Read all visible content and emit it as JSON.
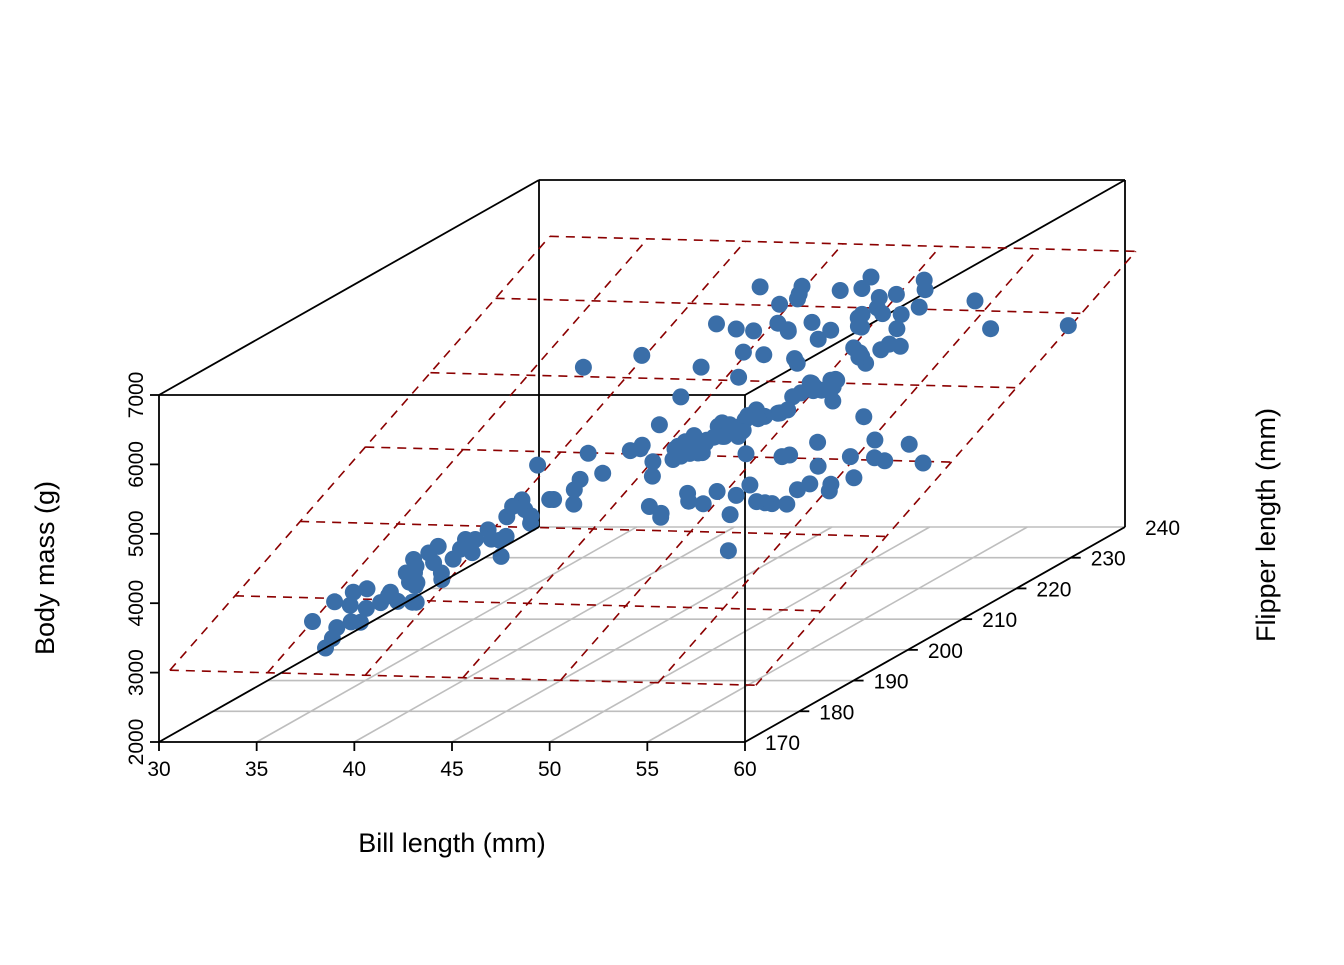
{
  "chart_data": {
    "type": "scatter",
    "projection": "scatterplot3d",
    "title": "",
    "xlabel": "Bill length (mm)",
    "ylabel": "Flipper length (mm)",
    "zlabel": "Body mass (g)",
    "xlim": [
      30,
      60
    ],
    "ylim": [
      170,
      240
    ],
    "zlim": [
      2000,
      7000
    ],
    "x_ticks": [
      "30",
      "35",
      "40",
      "45",
      "50",
      "55",
      "60"
    ],
    "y_ticks": [
      "170",
      "180",
      "190",
      "200",
      "210",
      "220",
      "230",
      "240"
    ],
    "z_ticks": [
      "2000",
      "3000",
      "4000",
      "5000",
      "6000",
      "7000"
    ],
    "grid": true,
    "legend": "none",
    "regression_plane": {
      "shown": true,
      "style": "dashed",
      "color": "#8B0000",
      "x_lines": [
        30,
        35,
        40,
        45,
        50,
        55,
        60
      ],
      "y_lines": [
        172,
        184,
        196,
        208,
        220,
        232,
        242
      ]
    },
    "point_color": "#3A6EA8",
    "grid_color": "#BEBEBE",
    "series": [
      {
        "x": [
          35.1,
          37.8,
          38.6,
          36.9,
          39.5,
          40.2,
          41.1,
          38.1,
          38.8,
          39.2,
          36.5,
          37.6,
          38.2,
          37.3,
          36.7,
          37.9,
          37.2,
          39.9,
          40.3,
          36.1,
          38.0,
          35.9,
          34.8,
          36.3,
          41.8,
          42.1,
          38.5,
          39.0,
          37.4,
          36.6,
          40.6,
          39.8,
          41.4,
          37.0,
          36.2,
          38.9,
          42.5,
          43.2,
          44.1,
          39.6,
          40.9,
          35.5,
          37.7,
          38.4,
          40.8,
          41.5,
          42.7,
          43.5,
          37.1,
          39.3,
          45.2,
          44.7,
          46.3,
          42.8,
          41.6,
          45.0,
          43.9,
          46.0,
          44.4,
          40.5,
          46.5,
          47.8,
          49.1,
          48.2,
          50.3,
          46.9,
          47.5,
          50.8,
          49.4,
          48.7,
          51.3,
          45.8,
          47.2,
          49.8,
          50.5,
          52.0,
          46.7,
          45.5,
          48.5,
          46.1,
          47.0,
          45.3,
          49.0,
          50.0,
          51.8,
          46.4,
          45.9,
          43.8,
          46.6,
          50.2,
          49.6,
          52.5,
          47.4,
          50.9,
          48.9,
          46.2,
          51.1,
          45.6,
          49.3,
          53.5,
          42.9,
          47.7,
          46.8,
          48.1,
          49.5,
          50.1,
          50.6,
          45.1,
          46.5,
          47.3,
          48.4,
          49.2,
          50.4,
          51.5,
          52.2,
          48.8,
          45.7,
          47.6,
          46.9,
          50.7,
          49.9,
          48.6,
          51.9,
          49.7,
          45.4,
          48.3,
          53.4,
          52.7,
          50.5,
          51.4,
          46.0,
          48.0,
          44.9,
          49.8,
          50.0,
          55.9,
          47.9,
          48.6,
          59.6,
          49.2,
          46.3,
          50.8,
          48.5,
          51.2,
          47.1,
          52.1,
          55.1,
          45.2,
          49.6,
          50.2,
          46.8,
          49.4,
          50.1,
          47.6,
          50.7,
          53.1,
          49.5,
          46.1,
          52.8,
          48.2,
          51.6,
          45.1,
          47.2,
          50.4,
          46.4,
          49.1,
          48.7,
          47.4,
          52.5,
          50.8,
          51.1,
          43.3,
          45.5,
          46.6,
          54.2,
          55.8,
          51.3,
          50.6,
          49.8,
          48.1,
          54.3,
          42.0,
          43.6,
          44.5,
          52.2,
          53.8,
          58.0
        ],
        "y": [
          184,
          189,
          183,
          186,
          190,
          191,
          194,
          187,
          185,
          189,
          182,
          190,
          188,
          186,
          183,
          193,
          191,
          195,
          197,
          180,
          188,
          184,
          181,
          178,
          196,
          195,
          190,
          185,
          186,
          179,
          197,
          193,
          192,
          183,
          186,
          190,
          197,
          199,
          201,
          191,
          192,
          186,
          192,
          187,
          198,
          196,
          197,
          199,
          190,
          193,
          210,
          208,
          212,
          203,
          198,
          207,
          209,
          211,
          205,
          195,
          214,
          216,
          218,
          213,
          219,
          213,
          215,
          220,
          216,
          210,
          218,
          214,
          215,
          217,
          220,
          221,
          210,
          212,
          215,
          209,
          213,
          210,
          212,
          218,
          221,
          214,
          215,
          209,
          214,
          218,
          220,
          222,
          215,
          219,
          216,
          211,
          223,
          210,
          215,
          222,
          200,
          213,
          217,
          213,
          216,
          219,
          220,
          206,
          208,
          208,
          209,
          211,
          218,
          220,
          222,
          214,
          206,
          213,
          212,
          219,
          216,
          216,
          223,
          219,
          207,
          213,
          224,
          222,
          220,
          221,
          210,
          220,
          212,
          219,
          226,
          230,
          217,
          219,
          231,
          218,
          219,
          224,
          221,
          227,
          218,
          225,
          230,
          218,
          229,
          230,
          228,
          229,
          230,
          221,
          225,
          228,
          231,
          230,
          228,
          230,
          229,
          222,
          224,
          226,
          225,
          225,
          223,
          225,
          230,
          231,
          230,
          222,
          221,
          221,
          212,
          207,
          200,
          201,
          197,
          201,
          204,
          205,
          210,
          210,
          195,
          200,
          210
        ],
        "z": [
          3400,
          3600,
          3450,
          3300,
          3750,
          3800,
          3900,
          3550,
          3350,
          3500,
          3200,
          3650,
          3500,
          3400,
          3150,
          3800,
          3700,
          3950,
          4050,
          3050,
          3600,
          3350,
          3250,
          3000,
          4000,
          4150,
          3700,
          3350,
          3450,
          3250,
          4200,
          3900,
          3700,
          3350,
          3500,
          3550,
          4300,
          4350,
          4500,
          3850,
          3950,
          3450,
          3750,
          3500,
          4250,
          4200,
          4300,
          4500,
          3550,
          3900,
          4300,
          4150,
          4450,
          4700,
          4750,
          4400,
          4550,
          4600,
          4650,
          3800,
          4600,
          4750,
          4850,
          4800,
          4900,
          4500,
          4650,
          5000,
          4750,
          4700,
          5100,
          4400,
          4550,
          4950,
          5000,
          5200,
          4400,
          4300,
          4700,
          4600,
          4500,
          4450,
          4800,
          5050,
          5300,
          4600,
          4400,
          4500,
          4650,
          5000,
          4850,
          5350,
          4500,
          4950,
          4700,
          4350,
          5200,
          4350,
          4750,
          5400,
          4100,
          4500,
          4400,
          4250,
          4100,
          4150,
          4700,
          3800,
          3900,
          3750,
          3550,
          3650,
          3850,
          3900,
          4050,
          3500,
          3700,
          3650,
          3750,
          3450,
          3600,
          3400,
          3750,
          3550,
          3600,
          3800,
          3900,
          3750,
          3500,
          3550,
          3700,
          3900,
          4400,
          5000,
          5200,
          5300,
          5500,
          5750,
          5300,
          5400,
          5450,
          5600,
          5200,
          5650,
          5800,
          5300,
          5700,
          5900,
          5550,
          5750,
          6000,
          5500,
          5600,
          6050,
          6100,
          5950,
          6000,
          5800,
          5700,
          5850,
          5550,
          5650,
          5550,
          5500,
          5600,
          5500,
          5700,
          5950,
          6000,
          5750,
          5300,
          5100,
          5000,
          6300,
          5750,
          5050,
          5150,
          5200,
          5050,
          5600,
          6300,
          5850,
          5800,
          4800,
          3650,
          4100,
          4250
        ]
      }
    ]
  }
}
